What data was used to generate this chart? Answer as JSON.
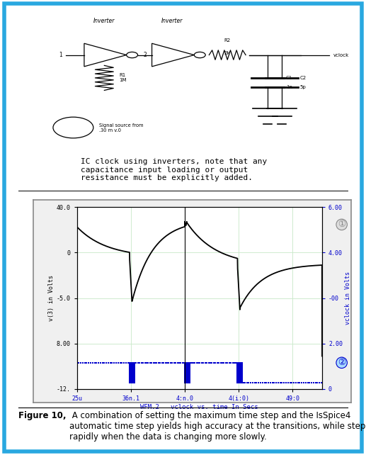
{
  "fig_width": 5.17,
  "fig_height": 6.42,
  "dpi": 100,
  "bg_color": "#ffffff",
  "border_color": "#29a8e0",
  "border_lw": 4,
  "schematic_text": "IC clock using inverters, note that any\ncapacitance input loading or output\nresistance must be explicitly added.",
  "schematic_fontsize": 8,
  "plot_xlabel": "WFM.2   vclock vs. time In Secs",
  "plot_left_ylabel": "v(3) in Volts",
  "plot_right_ylabel": "vclock in Volts",
  "left_ytick_vals": [
    -12,
    8,
    -5,
    0,
    40
  ],
  "left_ytick_labels": [
    "-12.",
    "8.00",
    "-5.0",
    "0",
    "40.0"
  ],
  "right_ytick_vals": [
    0,
    2,
    -0.5,
    4,
    6
  ],
  "right_ytick_labels": [
    "0",
    "2.00",
    "-00",
    "4.00",
    "6.00"
  ],
  "ylim_left": [
    -14,
    42
  ],
  "ylim_right": [
    -14,
    42
  ],
  "xtick_vals": [
    0,
    0.22,
    0.44,
    0.66,
    0.88
  ],
  "xtick_labels": [
    "25u",
    "36n.1",
    "4:n.0",
    "4(i:0)",
    "49:0"
  ],
  "grid_color": "#c8e8c8",
  "grid_alpha": 1.0,
  "plot_bg": "#ffffff",
  "trace1_color": "#000000",
  "trace2_color": "#0000cc",
  "caption_bold": "Figure 10,",
  "caption_rest": " A combination of setting the maximum time step and the IsSpice4\nautomatic time step yields high accuracy at the transitions, while stepping more\nrapidly when the data is changing more slowly.",
  "caption_fontsize": 8.5
}
